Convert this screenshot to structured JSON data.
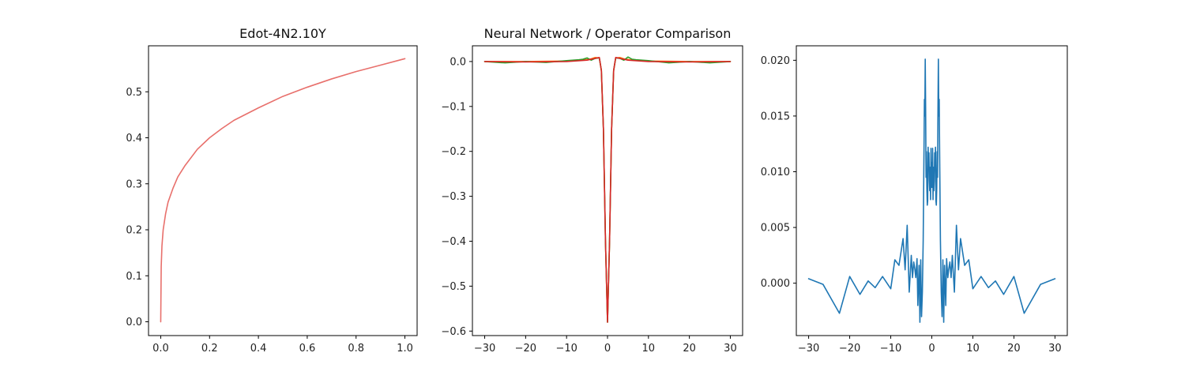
{
  "chart_data": [
    {
      "type": "line",
      "title": "Edot-4N2.10Y",
      "xlabel": "",
      "ylabel": "",
      "xlim": [
        -0.05,
        1.05
      ],
      "ylim": [
        -0.03,
        0.6
      ],
      "xticks": [
        0.0,
        0.2,
        0.4,
        0.6,
        0.8,
        1.0
      ],
      "xtick_labels": [
        "0.0",
        "0.2",
        "0.4",
        "0.6",
        "0.8",
        "1.0"
      ],
      "yticks": [
        0.0,
        0.1,
        0.2,
        0.3,
        0.4,
        0.5
      ],
      "ytick_labels": [
        "0.0",
        "0.1",
        "0.2",
        "0.3",
        "0.4",
        "0.5"
      ],
      "grid": false,
      "series": [
        {
          "color": "#e8706c",
          "x": [
            0,
            0.002,
            0.005,
            0.01,
            0.02,
            0.03,
            0.05,
            0.07,
            0.1,
            0.15,
            0.2,
            0.25,
            0.3,
            0.4,
            0.5,
            0.6,
            0.7,
            0.8,
            0.9,
            1.0
          ],
          "y": [
            0,
            0.12,
            0.165,
            0.2,
            0.235,
            0.26,
            0.29,
            0.315,
            0.34,
            0.375,
            0.4,
            0.42,
            0.438,
            0.465,
            0.49,
            0.51,
            0.528,
            0.544,
            0.558,
            0.572
          ]
        }
      ]
    },
    {
      "type": "line",
      "title": "Neural Network / Operator Comparison",
      "xlabel": "",
      "ylabel": "",
      "xlim": [
        -33,
        33
      ],
      "ylim": [
        -0.61,
        0.035
      ],
      "xticks": [
        -30,
        -20,
        -10,
        0,
        10,
        20,
        30
      ],
      "xtick_labels": [
        "−30",
        "−20",
        "−10",
        "0",
        "10",
        "20",
        "30"
      ],
      "yticks": [
        0.0,
        -0.1,
        -0.2,
        -0.3,
        -0.4,
        -0.5,
        -0.6
      ],
      "ytick_labels": [
        "0.0",
        "−0.1",
        "−0.2",
        "−0.3",
        "−0.4",
        "−0.5",
        "−0.6"
      ],
      "grid": false,
      "series": [
        {
          "color": "#ff7f0e",
          "x": [
            -30,
            -20,
            -10,
            -6,
            -4,
            -3,
            -2,
            -1.5,
            -1,
            -0.5,
            0,
            0.5,
            1,
            1.5,
            2,
            3,
            4,
            6,
            10,
            20,
            30
          ],
          "y": [
            0,
            0,
            0.001,
            0.003,
            0.006,
            0.009,
            0.008,
            -0.02,
            -0.15,
            -0.4,
            -0.58,
            -0.4,
            -0.15,
            -0.02,
            0.008,
            0.009,
            0.006,
            0.003,
            0.001,
            0,
            0
          ]
        },
        {
          "color": "#2ca02c",
          "x": [
            -30,
            -25,
            -20,
            -15,
            -10,
            -7,
            -6,
            -5,
            -4,
            -3,
            -2,
            -1.5,
            -1,
            -0.5,
            0,
            0.5,
            1,
            1.5,
            2,
            3,
            4,
            5,
            6,
            7,
            10,
            15,
            20,
            25,
            30
          ],
          "y": [
            0,
            -0.003,
            0,
            -0.002,
            0.002,
            0.004,
            0.005,
            0.008,
            0.003,
            0.007,
            0.008,
            -0.02,
            -0.15,
            -0.4,
            -0.58,
            -0.4,
            -0.15,
            -0.02,
            0.008,
            0.007,
            0.003,
            0.01,
            0.005,
            0.004,
            0.002,
            -0.003,
            0,
            -0.003,
            0
          ]
        },
        {
          "color": "#d62728",
          "x": [
            -30,
            -20,
            -10,
            -5,
            -3,
            -2,
            -1.5,
            -1,
            -0.5,
            0,
            0.5,
            1,
            1.5,
            2,
            3,
            5,
            10,
            20,
            30
          ],
          "y": [
            0,
            -0.001,
            0,
            0.003,
            0.007,
            0.009,
            -0.02,
            -0.15,
            -0.4,
            -0.58,
            -0.4,
            -0.15,
            -0.02,
            0.009,
            0.007,
            0.003,
            0,
            -0.001,
            0
          ]
        }
      ]
    },
    {
      "type": "line",
      "title": "",
      "xlabel": "",
      "ylabel": "",
      "xlim": [
        -33,
        33
      ],
      "ylim": [
        -0.0047,
        0.0213
      ],
      "xticks": [
        -30,
        -20,
        -10,
        0,
        10,
        20,
        30
      ],
      "xtick_labels": [
        "−30",
        "−20",
        "−10",
        "0",
        "10",
        "20",
        "30"
      ],
      "yticks": [
        0.0,
        0.005,
        0.01,
        0.015,
        0.02
      ],
      "ytick_labels": [
        "0.000",
        "0.005",
        "0.010",
        "0.015",
        "0.020"
      ],
      "grid": false,
      "series": [
        {
          "color": "#1f77b4",
          "x": [
            -30,
            -26.5,
            -22.5,
            -20,
            -17.5,
            -15.5,
            -13.8,
            -12,
            -10,
            -9,
            -8,
            -7,
            -6.5,
            -6,
            -5.5,
            -5,
            -4.7,
            -4.4,
            -4.1,
            -3.9,
            -3.6,
            -3.4,
            -3.1,
            -2.9,
            -2.7,
            -2.5,
            -2.3,
            -2.1,
            -1.9,
            -1.8,
            -1.7,
            -1.6,
            -1.5,
            -1.4,
            -1.3,
            -1.2,
            -1.1,
            -1.0,
            -0.9,
            -0.8,
            -0.7,
            -0.6,
            -0.5,
            -0.4,
            -0.3,
            -0.2,
            -0.1,
            0,
            0.1,
            0.2,
            0.3,
            0.4,
            0.5,
            0.6,
            0.7,
            0.8,
            0.9,
            1.0,
            1.1,
            1.2,
            1.3,
            1.4,
            1.5,
            1.6,
            1.7,
            1.8,
            1.9,
            2.1,
            2.3,
            2.5,
            2.7,
            2.9,
            3.1,
            3.4,
            3.6,
            3.9,
            4.1,
            4.4,
            4.7,
            5,
            5.5,
            6,
            6.5,
            7,
            8,
            9,
            10,
            12,
            13.8,
            15.5,
            17.5,
            20,
            22.5,
            26.5,
            30
          ],
          "y": [
            0.0004,
            -0.0001,
            -0.0027,
            0.0006,
            -0.001,
            0.0002,
            -0.0004,
            0.0006,
            -0.0005,
            0.0021,
            0.0016,
            0.004,
            0.0012,
            0.0052,
            -0.0008,
            0.0025,
            0.0005,
            0.0019,
            0.0012,
            0.0005,
            0.0022,
            -0.002,
            0.0016,
            -0.0035,
            0.0021,
            -0.003,
            -0.0008,
            0.0038,
            0.012,
            0.0165,
            0.015,
            0.0201,
            0.0155,
            0.0095,
            0.0118,
            0.0085,
            0.007,
            0.0074,
            0.0122,
            0.0105,
            0.0117,
            0.0092,
            0.0083,
            0.0104,
            0.0075,
            0.0121,
            0.0086,
            0.0108,
            0.0086,
            0.0121,
            0.0075,
            0.0104,
            0.0083,
            0.0092,
            0.0117,
            0.0105,
            0.0122,
            0.0074,
            0.007,
            0.0085,
            0.0118,
            0.0095,
            0.0155,
            0.0201,
            0.015,
            0.0165,
            0.012,
            0.0038,
            -0.0008,
            -0.003,
            0.0021,
            -0.0035,
            0.0016,
            -0.002,
            0.0022,
            0.0005,
            0.0012,
            0.0019,
            0.0005,
            0.0025,
            -0.0008,
            0.0052,
            0.0012,
            0.004,
            0.0016,
            0.0021,
            -0.0005,
            0.0006,
            -0.0004,
            0.0002,
            -0.001,
            0.0006,
            -0.0027,
            -0.0001,
            0.0004
          ]
        }
      ]
    }
  ]
}
